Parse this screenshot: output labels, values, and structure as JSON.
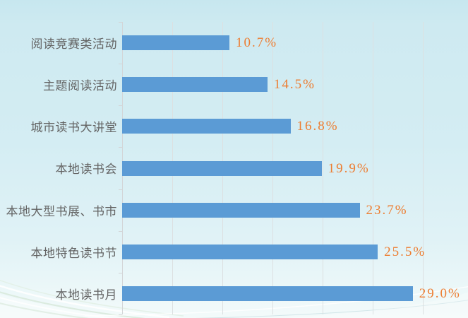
{
  "chart_data": {
    "type": "bar",
    "orientation": "horizontal",
    "title": "",
    "categories": [
      "阅读竞赛类活动",
      "主题阅读活动",
      "城市读书大讲堂",
      "本地读书会",
      "本地大型书展、书市",
      "本地特色读书节",
      "本地读书月"
    ],
    "values": [
      10.7,
      14.5,
      16.8,
      19.9,
      23.7,
      25.5,
      29.0
    ],
    "value_labels": [
      "10.7%",
      "14.5%",
      "16.8%",
      "19.9%",
      "23.7%",
      "25.5%",
      "29.0%"
    ],
    "xlim": [
      0,
      30
    ],
    "grid_step": 5,
    "grid": true,
    "legend_position": "none",
    "colors": {
      "bar": "#5B9BD5",
      "value_label": "#ED7D31",
      "category_label": "#646464",
      "gridline": "#DCE0E1",
      "axis_line": "#D3D5D7",
      "background_top": "#C7E7EF",
      "background_bottom": "#F3FAFA"
    }
  }
}
